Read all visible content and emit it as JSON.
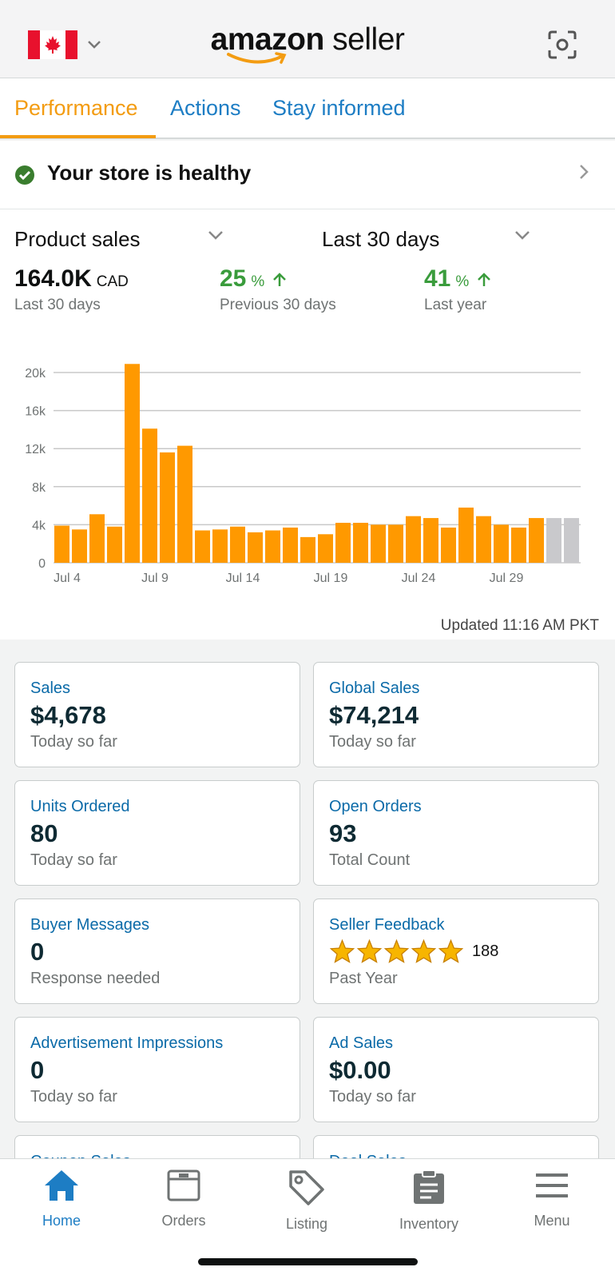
{
  "header": {
    "logo_brand": "amazon",
    "logo_suffix": "seller",
    "country_flag": "canada-flag-icon",
    "scan_icon": "scan-icon"
  },
  "tabs": [
    {
      "label": "Performance",
      "active": true
    },
    {
      "label": "Actions",
      "active": false
    },
    {
      "label": "Stay informed",
      "active": false
    }
  ],
  "health": {
    "text": "Your store is healthy",
    "status_color": "#3a8a2e"
  },
  "metrics": {
    "metric_select": "Product sales",
    "period_select": "Last 30 days",
    "total_value": "164.0K",
    "total_unit": "CAD",
    "total_sub": "Last 30 days",
    "prev_pct": "25",
    "prev_unit": "%",
    "prev_sub": "Previous 30 days",
    "year_pct": "41",
    "year_unit": "%",
    "year_sub": "Last year",
    "updated": "Updated 11:16 AM PKT"
  },
  "chart_data": {
    "type": "bar",
    "categories": [
      "Jul 4",
      "Jul 5",
      "Jul 6",
      "Jul 7",
      "Jul 8",
      "Jul 9",
      "Jul 10",
      "Jul 11",
      "Jul 12",
      "Jul 13",
      "Jul 14",
      "Jul 15",
      "Jul 16",
      "Jul 17",
      "Jul 18",
      "Jul 19",
      "Jul 20",
      "Jul 21",
      "Jul 22",
      "Jul 23",
      "Jul 24",
      "Jul 25",
      "Jul 26",
      "Jul 27",
      "Jul 28",
      "Jul 29",
      "Jul 30",
      "Jul 31",
      "Aug 1",
      "Aug 2"
    ],
    "values": [
      3900,
      3500,
      5100,
      3800,
      20900,
      14100,
      11600,
      12300,
      3400,
      3500,
      3800,
      3200,
      3400,
      3700,
      2700,
      3000,
      4200,
      4200,
      4000,
      4000,
      4900,
      4700,
      3700,
      5800,
      4900,
      4000,
      3700,
      4700,
      4700,
      4700
    ],
    "bar_colors": [
      "#ff9900",
      "#ff9900",
      "#ff9900",
      "#ff9900",
      "#ff9900",
      "#ff9900",
      "#ff9900",
      "#ff9900",
      "#ff9900",
      "#ff9900",
      "#ff9900",
      "#ff9900",
      "#ff9900",
      "#ff9900",
      "#ff9900",
      "#ff9900",
      "#ff9900",
      "#ff9900",
      "#ff9900",
      "#ff9900",
      "#ff9900",
      "#ff9900",
      "#ff9900",
      "#ff9900",
      "#ff9900",
      "#ff9900",
      "#ff9900",
      "#ff9900",
      "#c9c9cc",
      "#c9c9cc"
    ],
    "yticks": [
      "0",
      "4k",
      "8k",
      "12k",
      "16k",
      "20k"
    ],
    "ytick_values": [
      0,
      4000,
      8000,
      12000,
      16000,
      20000
    ],
    "xticks": [
      "Jul 4",
      "Jul 9",
      "Jul 14",
      "Jul 19",
      "Jul 24",
      "Jul 29"
    ],
    "xtick_index": [
      0,
      5,
      10,
      15,
      20,
      25
    ],
    "ylim": [
      0,
      20000
    ],
    "grid": true
  },
  "cards": [
    {
      "title": "Sales",
      "value": "$4,678",
      "sub": "Today so far"
    },
    {
      "title": "Global Sales",
      "value": "$74,214",
      "sub": "Today so far"
    },
    {
      "title": "Units Ordered",
      "value": "80",
      "sub": "Today so far"
    },
    {
      "title": "Open Orders",
      "value": "93",
      "sub": "Total Count"
    },
    {
      "title": "Buyer Messages",
      "value": "0",
      "sub": "Response needed"
    },
    {
      "title": "Seller Feedback",
      "rating_stars": 5,
      "rating_count": "188",
      "sub": "Past Year"
    },
    {
      "title": "Advertisement Impressions",
      "value": "0",
      "sub": "Today so far"
    },
    {
      "title": "Ad Sales",
      "value": "$0.00",
      "sub": "Today so far"
    },
    {
      "title": "Coupon Sales"
    },
    {
      "title": "Deal Sales"
    }
  ],
  "nav": [
    {
      "label": "Home",
      "icon": "home-icon",
      "active": true
    },
    {
      "label": "Orders",
      "icon": "orders-box-icon",
      "active": false
    },
    {
      "label": "Listing",
      "icon": "tag-icon",
      "active": false
    },
    {
      "label": "Inventory",
      "icon": "clipboard-icon",
      "active": false
    },
    {
      "label": "Menu",
      "icon": "hamburger-menu-icon",
      "active": false
    }
  ],
  "colors": {
    "accent": "#ff9900",
    "link": "#1d7dc4",
    "positive": "#3a9c3c"
  }
}
